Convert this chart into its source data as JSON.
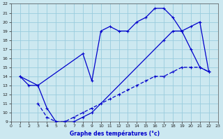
{
  "xlabel": "Graphe des températures (°c)",
  "bg_color": "#cce8f0",
  "grid_color": "#99ccdd",
  "line_color": "#0000cc",
  "xlim": [
    0,
    23
  ],
  "ylim": [
    9,
    22
  ],
  "xticks": [
    0,
    1,
    2,
    3,
    4,
    5,
    6,
    7,
    8,
    9,
    10,
    11,
    12,
    13,
    14,
    15,
    16,
    17,
    18,
    19,
    20,
    21,
    22,
    23
  ],
  "yticks": [
    9,
    10,
    11,
    12,
    13,
    14,
    15,
    16,
    17,
    18,
    19,
    20,
    21,
    22
  ],
  "curve1_x": [
    1,
    2,
    3,
    8,
    9,
    10,
    11,
    12,
    13,
    14,
    15,
    16,
    17,
    18,
    19,
    20,
    21,
    22
  ],
  "curve1_y": [
    14,
    13,
    13,
    16.5,
    13.5,
    19,
    19.5,
    19,
    19,
    20,
    20.5,
    21.5,
    21.5,
    20.5,
    19,
    17,
    15,
    14.5
  ],
  "curve2_x": [
    1,
    3,
    4,
    5,
    6,
    7,
    8,
    9,
    17,
    18,
    19,
    20,
    21,
    22
  ],
  "curve2_y": [
    14,
    13,
    10.5,
    9,
    9,
    9,
    9.5,
    10,
    18,
    19,
    19,
    19.5,
    20,
    14.5
  ],
  "curve3_x": [
    3,
    4,
    5,
    6,
    7,
    8,
    9,
    10,
    11,
    12,
    13,
    14,
    15,
    16,
    17,
    18,
    19,
    20,
    21,
    22
  ],
  "curve3_y": [
    11,
    9.5,
    9,
    9,
    9.5,
    10,
    10.5,
    11,
    11.5,
    12,
    12.5,
    13,
    13.5,
    14,
    14,
    14.5,
    15,
    15,
    15,
    14.5
  ],
  "curve3_dashed": true
}
